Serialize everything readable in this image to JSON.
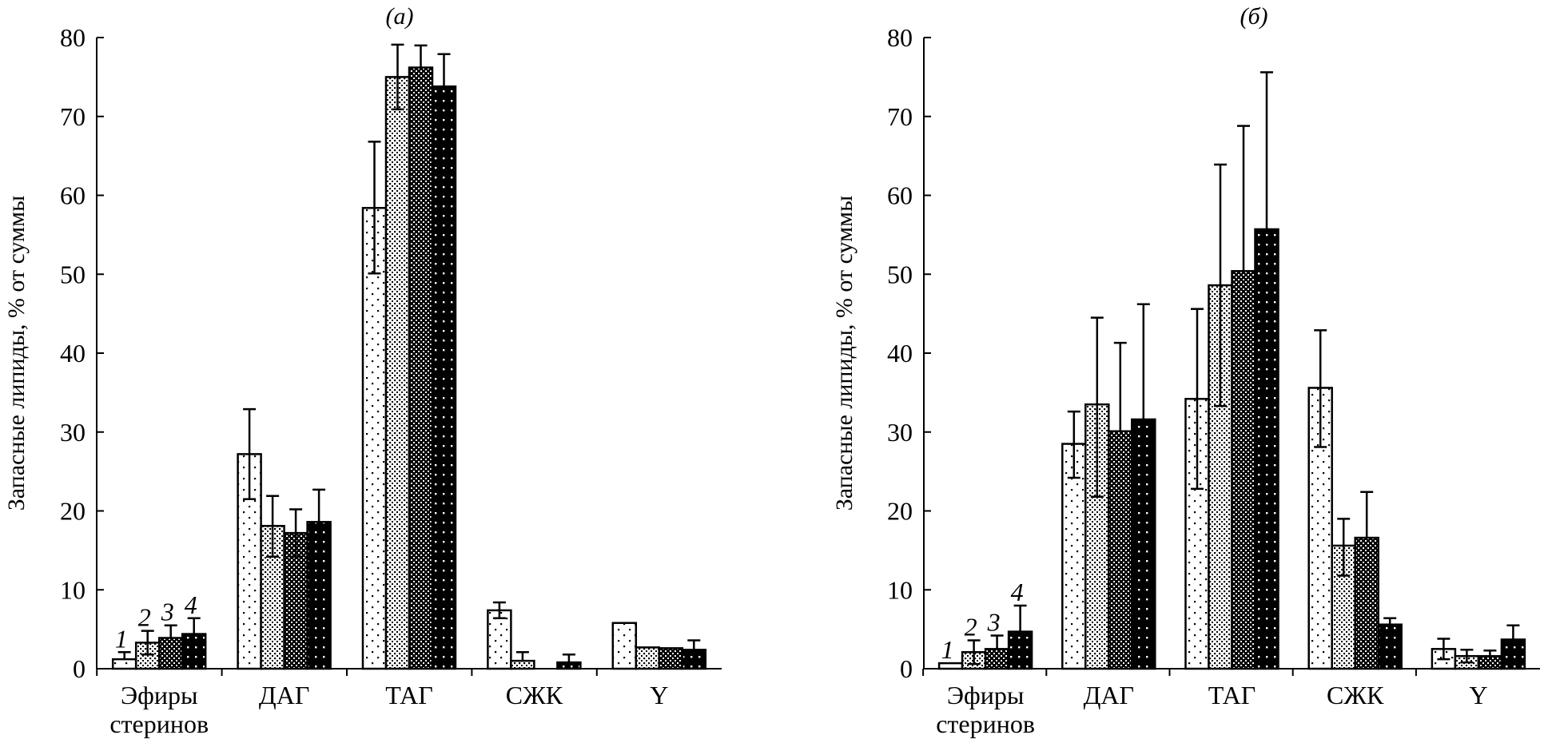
{
  "chart_data": [
    {
      "type": "bar",
      "title": "(а)",
      "ylabel": "Запасные липиды, % от суммы",
      "xlabel": "",
      "ylim": [
        0,
        80
      ],
      "yticks": [
        "0",
        "10",
        "20",
        "30",
        "40",
        "50",
        "60",
        "70",
        "80"
      ],
      "categories": [
        "Эфиры\nстеринов",
        "ДАГ",
        "ТАГ",
        "СЖК",
        "Y"
      ],
      "series_labels": [
        "1",
        "2",
        "3",
        "4"
      ],
      "series": [
        {
          "name": "1",
          "values": [
            1.2,
            27.2,
            58.4,
            7.4,
            5.8
          ],
          "error_upper": [
            2.1,
            32.9,
            66.8,
            8.4,
            null
          ],
          "error_lower": [
            null,
            21.5,
            50.1,
            6.4,
            null
          ]
        },
        {
          "name": "2",
          "values": [
            3.3,
            18.1,
            75.0,
            1.0,
            2.7
          ],
          "error_upper": [
            4.8,
            21.9,
            79.1,
            2.1,
            null
          ],
          "error_lower": [
            1.8,
            14.2,
            70.9,
            null,
            null
          ]
        },
        {
          "name": "3",
          "values": [
            3.9,
            17.2,
            76.2,
            0,
            2.6
          ],
          "error_upper": [
            5.5,
            20.2,
            79.0,
            null,
            null
          ],
          "error_lower": [
            null,
            14.2,
            null,
            null,
            null
          ]
        },
        {
          "name": "4",
          "values": [
            4.4,
            18.6,
            73.8,
            0.8,
            2.4
          ],
          "error_upper": [
            6.4,
            22.7,
            77.9,
            1.8,
            3.6
          ],
          "error_lower": [
            null,
            null,
            null,
            null,
            null
          ]
        }
      ],
      "grid": false
    },
    {
      "type": "bar",
      "title": "(б)",
      "ylabel": "Запасные липиды, % от суммы",
      "xlabel": "",
      "ylim": [
        0,
        80
      ],
      "yticks": [
        "0",
        "10",
        "20",
        "30",
        "40",
        "50",
        "60",
        "70",
        "80"
      ],
      "categories": [
        "Эфиры\nстеринов",
        "ДАГ",
        "ТАГ",
        "СЖК",
        "Y"
      ],
      "series_labels": [
        "1",
        "2",
        "3",
        "4"
      ],
      "series": [
        {
          "name": "1",
          "values": [
            0.7,
            28.5,
            34.2,
            35.6,
            2.5
          ],
          "error_upper": [
            null,
            32.6,
            45.6,
            42.9,
            3.8
          ],
          "error_lower": [
            null,
            24.2,
            22.8,
            28.1,
            1.2
          ]
        },
        {
          "name": "2",
          "values": [
            2.1,
            33.5,
            48.6,
            15.6,
            1.6
          ],
          "error_upper": [
            3.6,
            44.5,
            63.9,
            19.0,
            2.4
          ],
          "error_lower": [
            0.6,
            21.8,
            33.3,
            11.8,
            0.8
          ]
        },
        {
          "name": "3",
          "values": [
            2.5,
            30.1,
            50.4,
            16.6,
            1.6
          ],
          "error_upper": [
            4.2,
            41.3,
            68.8,
            22.4,
            2.3
          ],
          "error_lower": [
            null,
            null,
            null,
            null,
            null
          ]
        },
        {
          "name": "4",
          "values": [
            4.7,
            31.6,
            55.7,
            5.6,
            3.7
          ],
          "error_upper": [
            8.0,
            46.2,
            75.6,
            6.4,
            5.5
          ],
          "error_lower": [
            null,
            null,
            null,
            null,
            null
          ]
        }
      ],
      "grid": false
    }
  ],
  "colors": {
    "ink": "#000000",
    "background": "#ffffff"
  }
}
